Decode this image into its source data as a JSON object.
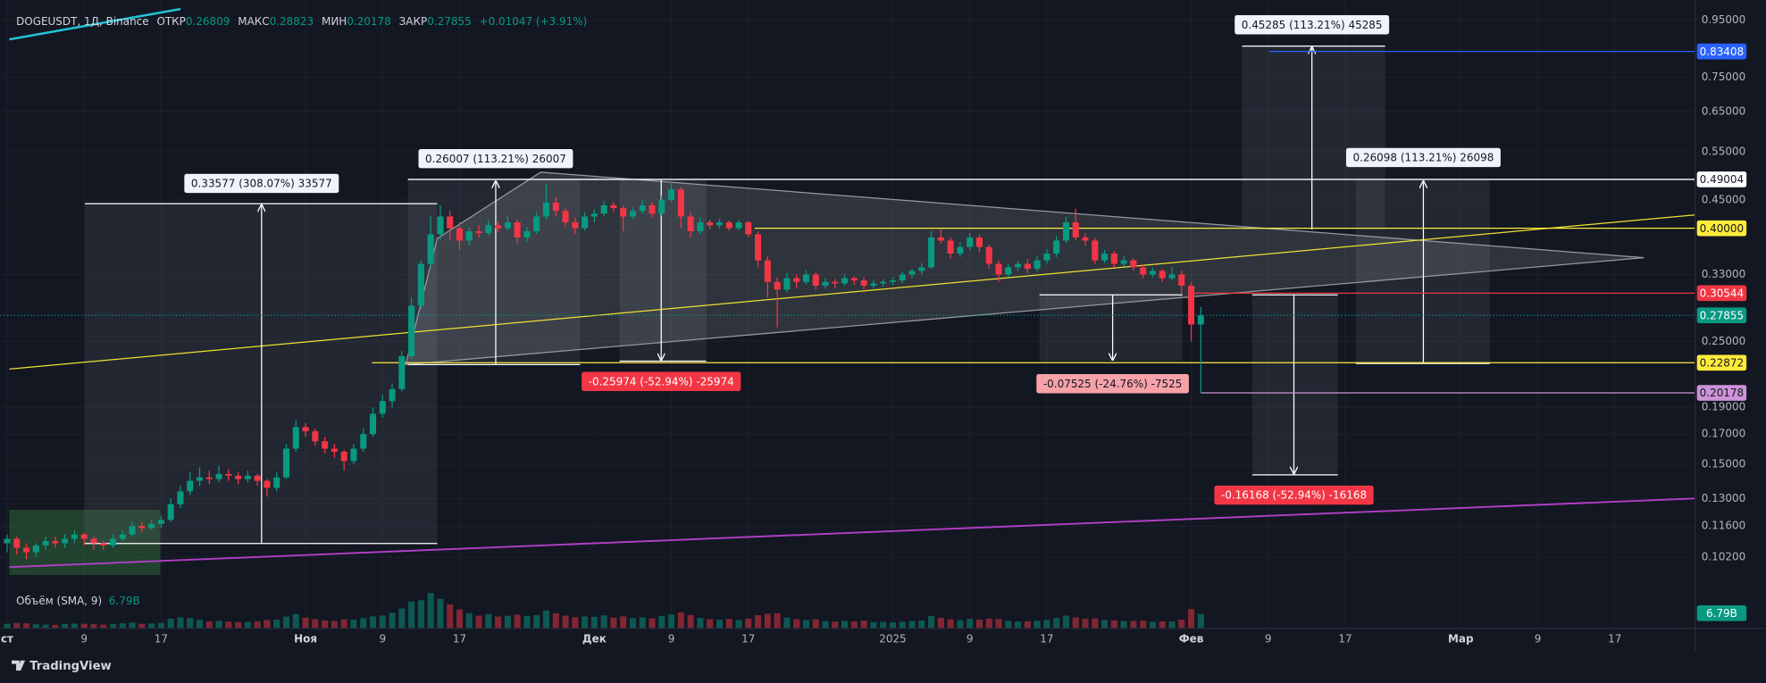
{
  "header": {
    "symbol": "DOGEUSDT, 1Д, Binance",
    "open_label": "ОТКР",
    "high_label": "МАКС",
    "low_label": "МИН",
    "close_label": "ЗАКР",
    "change": "+0.01047 (+3.91%)"
  },
  "chart_data": {
    "type": "candlestick",
    "log_scale": true,
    "grid": true,
    "up_color": "#089981",
    "down_color": "#f23645",
    "low_tag_color": "#ce93d8",
    "ylim": [
      0.0929,
      0.995
    ],
    "yticks": [
      {
        "value": 0.95,
        "label": "0.95000"
      },
      {
        "value": 0.75,
        "label": "0.75000"
      },
      {
        "value": 0.65,
        "label": "0.65000"
      },
      {
        "value": 0.55,
        "label": "0.55000"
      },
      {
        "value": 0.45,
        "label": "0.45000"
      },
      {
        "value": 0.33,
        "label": "0.33000"
      },
      {
        "value": 0.25,
        "label": "0.25000"
      },
      {
        "value": 0.19,
        "label": "0.19000"
      },
      {
        "value": 0.17,
        "label": "0.17000"
      },
      {
        "value": 0.15,
        "label": "0.15000"
      },
      {
        "value": 0.13,
        "label": "0.13000"
      },
      {
        "value": 0.116,
        "label": "0.11600"
      },
      {
        "value": 0.102,
        "label": "0.10200"
      }
    ],
    "xlim": [
      -0.7,
      175.3
    ],
    "xticks": [
      {
        "value": 0,
        "label": "ст"
      },
      {
        "value": 8,
        "label": "9"
      },
      {
        "value": 16,
        "label": "17"
      },
      {
        "value": 31,
        "label": "Ноя"
      },
      {
        "value": 39,
        "label": "9"
      },
      {
        "value": 47,
        "label": "17"
      },
      {
        "value": 61,
        "label": "Дек"
      },
      {
        "value": 69,
        "label": "9"
      },
      {
        "value": 77,
        "label": "17"
      },
      {
        "value": 92,
        "label": "2025"
      },
      {
        "value": 100,
        "label": "9"
      },
      {
        "value": 108,
        "label": "17"
      },
      {
        "value": 123,
        "label": "Фев"
      },
      {
        "value": 131,
        "label": "9"
      },
      {
        "value": 139,
        "label": "17"
      },
      {
        "value": 151,
        "label": "Мар"
      },
      {
        "value": 159,
        "label": "9"
      },
      {
        "value": 167,
        "label": "17"
      }
    ],
    "candles": [
      [
        0.108,
        0.112,
        0.104,
        0.11
      ],
      [
        0.11,
        0.111,
        0.103,
        0.106
      ],
      [
        0.106,
        0.108,
        0.101,
        0.104
      ],
      [
        0.104,
        0.108,
        0.102,
        0.107
      ],
      [
        0.107,
        0.111,
        0.105,
        0.109
      ],
      [
        0.109,
        0.111,
        0.106,
        0.108
      ],
      [
        0.108,
        0.112,
        0.106,
        0.11
      ],
      [
        0.11,
        0.114,
        0.108,
        0.112
      ],
      [
        0.112,
        0.113,
        0.107,
        0.11
      ],
      [
        0.11,
        0.111,
        0.105,
        0.108
      ],
      [
        0.108,
        0.109,
        0.105,
        0.107
      ],
      [
        0.107,
        0.112,
        0.106,
        0.11
      ],
      [
        0.11,
        0.114,
        0.109,
        0.112
      ],
      [
        0.112,
        0.118,
        0.111,
        0.116
      ],
      [
        0.116,
        0.118,
        0.113,
        0.115
      ],
      [
        0.115,
        0.119,
        0.114,
        0.117
      ],
      [
        0.117,
        0.121,
        0.115,
        0.119
      ],
      [
        0.119,
        0.13,
        0.118,
        0.127
      ],
      [
        0.127,
        0.137,
        0.125,
        0.134
      ],
      [
        0.134,
        0.145,
        0.132,
        0.14
      ],
      [
        0.14,
        0.148,
        0.137,
        0.142
      ],
      [
        0.142,
        0.146,
        0.138,
        0.141
      ],
      [
        0.141,
        0.149,
        0.139,
        0.144
      ],
      [
        0.144,
        0.147,
        0.14,
        0.143
      ],
      [
        0.143,
        0.145,
        0.138,
        0.141
      ],
      [
        0.141,
        0.146,
        0.139,
        0.143
      ],
      [
        0.143,
        0.144,
        0.137,
        0.14
      ],
      [
        0.14,
        0.141,
        0.131,
        0.136
      ],
      [
        0.136,
        0.145,
        0.134,
        0.142
      ],
      [
        0.142,
        0.163,
        0.141,
        0.16
      ],
      [
        0.16,
        0.18,
        0.158,
        0.175
      ],
      [
        0.175,
        0.178,
        0.168,
        0.172
      ],
      [
        0.172,
        0.174,
        0.162,
        0.165
      ],
      [
        0.165,
        0.168,
        0.157,
        0.16
      ],
      [
        0.16,
        0.163,
        0.154,
        0.158
      ],
      [
        0.158,
        0.159,
        0.146,
        0.152
      ],
      [
        0.152,
        0.163,
        0.15,
        0.16
      ],
      [
        0.16,
        0.174,
        0.158,
        0.17
      ],
      [
        0.17,
        0.19,
        0.168,
        0.185
      ],
      [
        0.185,
        0.2,
        0.182,
        0.195
      ],
      [
        0.195,
        0.21,
        0.19,
        0.205
      ],
      [
        0.205,
        0.24,
        0.203,
        0.235
      ],
      [
        0.235,
        0.3,
        0.232,
        0.29
      ],
      [
        0.29,
        0.35,
        0.285,
        0.345
      ],
      [
        0.345,
        0.42,
        0.34,
        0.39
      ],
      [
        0.39,
        0.44,
        0.38,
        0.42
      ],
      [
        0.42,
        0.43,
        0.38,
        0.4
      ],
      [
        0.4,
        0.41,
        0.365,
        0.38
      ],
      [
        0.38,
        0.402,
        0.372,
        0.395
      ],
      [
        0.395,
        0.405,
        0.385,
        0.392
      ],
      [
        0.392,
        0.415,
        0.388,
        0.405
      ],
      [
        0.405,
        0.412,
        0.394,
        0.4
      ],
      [
        0.4,
        0.422,
        0.396,
        0.41
      ],
      [
        0.41,
        0.415,
        0.375,
        0.385
      ],
      [
        0.385,
        0.402,
        0.378,
        0.395
      ],
      [
        0.395,
        0.428,
        0.39,
        0.42
      ],
      [
        0.42,
        0.48,
        0.415,
        0.445
      ],
      [
        0.445,
        0.455,
        0.42,
        0.43
      ],
      [
        0.43,
        0.436,
        0.402,
        0.41
      ],
      [
        0.41,
        0.418,
        0.39,
        0.4
      ],
      [
        0.4,
        0.428,
        0.396,
        0.42
      ],
      [
        0.42,
        0.432,
        0.41,
        0.425
      ],
      [
        0.425,
        0.448,
        0.42,
        0.44
      ],
      [
        0.44,
        0.446,
        0.428,
        0.435
      ],
      [
        0.435,
        0.44,
        0.395,
        0.42
      ],
      [
        0.42,
        0.437,
        0.415,
        0.43
      ],
      [
        0.43,
        0.45,
        0.425,
        0.44
      ],
      [
        0.44,
        0.446,
        0.418,
        0.425
      ],
      [
        0.425,
        0.458,
        0.42,
        0.45
      ],
      [
        0.45,
        0.484,
        0.445,
        0.47
      ],
      [
        0.47,
        0.475,
        0.4,
        0.42
      ],
      [
        0.42,
        0.428,
        0.385,
        0.395
      ],
      [
        0.395,
        0.418,
        0.39,
        0.41
      ],
      [
        0.41,
        0.414,
        0.398,
        0.405
      ],
      [
        0.405,
        0.416,
        0.4,
        0.41
      ],
      [
        0.41,
        0.413,
        0.396,
        0.4
      ],
      [
        0.4,
        0.414,
        0.396,
        0.41
      ],
      [
        0.41,
        0.412,
        0.385,
        0.39
      ],
      [
        0.39,
        0.395,
        0.34,
        0.35
      ],
      [
        0.35,
        0.356,
        0.3,
        0.32
      ],
      [
        0.32,
        0.326,
        0.265,
        0.31
      ],
      [
        0.31,
        0.332,
        0.306,
        0.325
      ],
      [
        0.325,
        0.33,
        0.312,
        0.32
      ],
      [
        0.32,
        0.336,
        0.316,
        0.33
      ],
      [
        0.33,
        0.333,
        0.31,
        0.315
      ],
      [
        0.315,
        0.325,
        0.311,
        0.32
      ],
      [
        0.32,
        0.324,
        0.312,
        0.318
      ],
      [
        0.318,
        0.33,
        0.315,
        0.325
      ],
      [
        0.325,
        0.328,
        0.316,
        0.322
      ],
      [
        0.322,
        0.326,
        0.31,
        0.315
      ],
      [
        0.315,
        0.322,
        0.311,
        0.318
      ],
      [
        0.318,
        0.324,
        0.314,
        0.32
      ],
      [
        0.32,
        0.326,
        0.316,
        0.322
      ],
      [
        0.322,
        0.334,
        0.318,
        0.33
      ],
      [
        0.33,
        0.338,
        0.325,
        0.335
      ],
      [
        0.335,
        0.346,
        0.33,
        0.34
      ],
      [
        0.34,
        0.395,
        0.338,
        0.385
      ],
      [
        0.385,
        0.398,
        0.375,
        0.38
      ],
      [
        0.38,
        0.385,
        0.352,
        0.36
      ],
      [
        0.36,
        0.378,
        0.355,
        0.37
      ],
      [
        0.37,
        0.392,
        0.365,
        0.385
      ],
      [
        0.385,
        0.39,
        0.362,
        0.37
      ],
      [
        0.37,
        0.374,
        0.338,
        0.345
      ],
      [
        0.345,
        0.35,
        0.32,
        0.33
      ],
      [
        0.33,
        0.345,
        0.326,
        0.34
      ],
      [
        0.34,
        0.35,
        0.335,
        0.345
      ],
      [
        0.345,
        0.352,
        0.332,
        0.338
      ],
      [
        0.338,
        0.356,
        0.334,
        0.35
      ],
      [
        0.35,
        0.366,
        0.345,
        0.36
      ],
      [
        0.36,
        0.388,
        0.355,
        0.38
      ],
      [
        0.38,
        0.42,
        0.376,
        0.41
      ],
      [
        0.41,
        0.434,
        0.38,
        0.385
      ],
      [
        0.385,
        0.392,
        0.372,
        0.38
      ],
      [
        0.38,
        0.384,
        0.345,
        0.35
      ],
      [
        0.35,
        0.366,
        0.346,
        0.36
      ],
      [
        0.36,
        0.364,
        0.34,
        0.345
      ],
      [
        0.345,
        0.356,
        0.341,
        0.35
      ],
      [
        0.35,
        0.353,
        0.335,
        0.34
      ],
      [
        0.34,
        0.344,
        0.325,
        0.33
      ],
      [
        0.33,
        0.34,
        0.326,
        0.335
      ],
      [
        0.335,
        0.338,
        0.32,
        0.325
      ],
      [
        0.325,
        0.34,
        0.322,
        0.33
      ],
      [
        0.33,
        0.335,
        0.305,
        0.315
      ],
      [
        0.315,
        0.32,
        0.25,
        0.26809
      ],
      [
        0.26809,
        0.28823,
        0.20178,
        0.27855
      ]
    ],
    "price_tags": [
      {
        "value": 0.83408,
        "color": "#2962ff"
      },
      {
        "value": 0.49004,
        "color": "#ffffff"
      },
      {
        "value": 0.4,
        "label": "0.40000",
        "color": "#ffeb3b"
      },
      {
        "value": 0.30544,
        "color": "#f23645"
      },
      {
        "value": 0.22872,
        "color": "#ffeb3b"
      }
    ],
    "measures": [
      "0.33577 (308.07%) 33577",
      "0.26007 (113.21%) 26007",
      "-0.25974 (-52.94%) -25974",
      "-0.07525 (-24.76%) -7525",
      "-0.16168 (-52.94%) -16168",
      "0.45285 (113.21%) 45285",
      "0.26098 (113.21%) 26098"
    ],
    "volume": {
      "title": "Объём (SMA, 9)",
      "last_label": "6.79B",
      "ylim": [
        0,
        22
      ],
      "values": [
        2.0,
        2.4,
        2.2,
        1.8,
        1.6,
        1.5,
        1.9,
        2.1,
        2.0,
        1.8,
        1.6,
        1.9,
        2.2,
        2.6,
        2.0,
        2.1,
        2.4,
        4.5,
        5.2,
        4.8,
        3.9,
        3.2,
        3.5,
        3.0,
        2.8,
        2.9,
        3.1,
        3.8,
        4.0,
        5.5,
        6.8,
        5.0,
        4.2,
        3.6,
        3.4,
        4.1,
        4.0,
        4.8,
        5.6,
        6.0,
        7.4,
        9.5,
        12.8,
        13.5,
        17.0,
        14.2,
        11.5,
        9.0,
        7.2,
        6.0,
        6.8,
        5.5,
        5.9,
        6.4,
        5.8,
        6.2,
        8.5,
        7.1,
        6.0,
        5.2,
        5.6,
        5.4,
        6.1,
        5.0,
        5.6,
        4.8,
        5.2,
        4.6,
        5.8,
        6.5,
        7.6,
        6.3,
        4.9,
        4.2,
        4.0,
        4.3,
        3.8,
        4.5,
        6.2,
        6.9,
        7.1,
        5.0,
        4.2,
        3.9,
        4.1,
        3.3,
        3.0,
        3.4,
        3.1,
        3.6,
        2.8,
        2.9,
        2.7,
        3.0,
        3.3,
        3.6,
        5.8,
        4.9,
        4.2,
        3.8,
        4.4,
        4.0,
        4.6,
        4.3,
        3.4,
        3.1,
        3.2,
        3.5,
        3.9,
        4.8,
        6.0,
        5.1,
        4.4,
        4.6,
        3.8,
        3.7,
        3.3,
        3.4,
        3.6,
        3.0,
        3.2,
        3.1,
        4.0,
        9.2,
        6.79
      ]
    }
  },
  "footer": {
    "brand": "TradingView"
  }
}
